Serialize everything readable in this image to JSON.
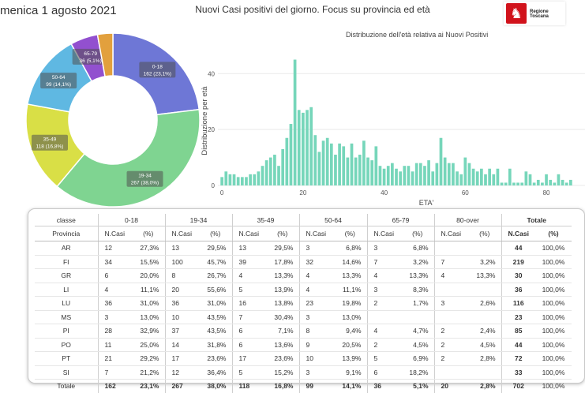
{
  "header": {
    "date": "menica 1 agosto 2021",
    "title": "Nuovi Casi positivi del giorno. Focus su provincia ed età",
    "logo_text": "Regione Toscana"
  },
  "chart_data": [
    {
      "type": "pie",
      "donut": true,
      "slices": [
        {
          "label": "0-18",
          "text": "162 (23,1%)",
          "value": 162,
          "percent": 23.1,
          "color": "#6e77d6"
        },
        {
          "label": "19-34",
          "text": "267 (38,0%)",
          "value": 267,
          "percent": 38.0,
          "color": "#7fd491"
        },
        {
          "label": "35-49",
          "text": "118 (16,8%)",
          "value": 118,
          "percent": 16.8,
          "color": "#d9df46"
        },
        {
          "label": "50-64",
          "text": "99 (14,1%)",
          "value": 99,
          "percent": 14.1,
          "color": "#5fb8e2"
        },
        {
          "label": "65-79",
          "text": "36 (5,1%)",
          "value": 36,
          "percent": 5.1,
          "color": "#9250cf"
        },
        {
          "label": "80-over",
          "text": "",
          "value": 20,
          "percent": 2.8,
          "color": "#e2a03d"
        }
      ]
    },
    {
      "type": "bar",
      "title": "Distribuzione dell'età relativa ai Nuovi Positivi",
      "xlabel": "ETA'",
      "ylabel": "Distribuzione per età",
      "xlim": [
        -1,
        87
      ],
      "ylim": [
        0,
        46
      ],
      "xticks": [
        0,
        20,
        40,
        60,
        80
      ],
      "yticks": [
        0,
        20,
        40
      ],
      "color": "#76d6ba",
      "x": [
        0,
        1,
        2,
        3,
        4,
        5,
        6,
        7,
        8,
        9,
        10,
        11,
        12,
        13,
        14,
        15,
        16,
        17,
        18,
        19,
        20,
        21,
        22,
        23,
        24,
        25,
        26,
        27,
        28,
        29,
        30,
        31,
        32,
        33,
        34,
        35,
        36,
        37,
        38,
        39,
        40,
        41,
        42,
        43,
        44,
        45,
        46,
        47,
        48,
        49,
        50,
        51,
        52,
        53,
        54,
        55,
        56,
        57,
        58,
        59,
        60,
        61,
        62,
        63,
        64,
        65,
        66,
        67,
        68,
        69,
        70,
        71,
        72,
        73,
        74,
        75,
        76,
        77,
        78,
        79,
        80,
        81,
        82,
        83,
        84,
        85,
        86
      ],
      "values": [
        3,
        5,
        4,
        4,
        3,
        3,
        3,
        4,
        4,
        5,
        7,
        9,
        10,
        11,
        7,
        13,
        17,
        22,
        45,
        27,
        26,
        27,
        28,
        18,
        12,
        16,
        17,
        15,
        11,
        15,
        14,
        10,
        15,
        10,
        11,
        16,
        10,
        9,
        14,
        7,
        6,
        7,
        8,
        6,
        5,
        7,
        7,
        5,
        8,
        8,
        7,
        9,
        5,
        8,
        17,
        10,
        8,
        8,
        5,
        4,
        10,
        8,
        6,
        5,
        6,
        4,
        6,
        4,
        6,
        1,
        1,
        6,
        1,
        1,
        1,
        5,
        4,
        1,
        2,
        1,
        4,
        2,
        1,
        4,
        2,
        1,
        2
      ]
    }
  ],
  "table": {
    "groups": [
      "0-18",
      "19-34",
      "35-49",
      "50-64",
      "65-79",
      "80-over"
    ],
    "classe_label": "classe",
    "totale_label": "Totale",
    "provincia_label": "Provincia",
    "ncasi_label": "N.Casi",
    "pct_label": "(%)",
    "rows": [
      {
        "p": "AR",
        "v": [
          [
            "12",
            "27,3%"
          ],
          [
            "13",
            "29,5%"
          ],
          [
            "13",
            "29,5%"
          ],
          [
            "3",
            "6,8%"
          ],
          [
            "3",
            "6,8%"
          ],
          [
            "",
            ""
          ]
        ],
        "t": [
          "44",
          "100,0%"
        ]
      },
      {
        "p": "FI",
        "v": [
          [
            "34",
            "15,5%"
          ],
          [
            "100",
            "45,7%"
          ],
          [
            "39",
            "17,8%"
          ],
          [
            "32",
            "14,6%"
          ],
          [
            "7",
            "3,2%"
          ],
          [
            "7",
            "3,2%"
          ]
        ],
        "t": [
          "219",
          "100,0%"
        ]
      },
      {
        "p": "GR",
        "v": [
          [
            "6",
            "20,0%"
          ],
          [
            "8",
            "26,7%"
          ],
          [
            "4",
            "13,3%"
          ],
          [
            "4",
            "13,3%"
          ],
          [
            "4",
            "13,3%"
          ],
          [
            "4",
            "13,3%"
          ]
        ],
        "t": [
          "30",
          "100,0%"
        ]
      },
      {
        "p": "LI",
        "v": [
          [
            "4",
            "11,1%"
          ],
          [
            "20",
            "55,6%"
          ],
          [
            "5",
            "13,9%"
          ],
          [
            "4",
            "11,1%"
          ],
          [
            "3",
            "8,3%"
          ],
          [
            "",
            ""
          ]
        ],
        "t": [
          "36",
          "100,0%"
        ]
      },
      {
        "p": "LU",
        "v": [
          [
            "36",
            "31,0%"
          ],
          [
            "36",
            "31,0%"
          ],
          [
            "16",
            "13,8%"
          ],
          [
            "23",
            "19,8%"
          ],
          [
            "2",
            "1,7%"
          ],
          [
            "3",
            "2,6%"
          ]
        ],
        "t": [
          "116",
          "100,0%"
        ]
      },
      {
        "p": "MS",
        "v": [
          [
            "3",
            "13,0%"
          ],
          [
            "10",
            "43,5%"
          ],
          [
            "7",
            "30,4%"
          ],
          [
            "3",
            "13,0%"
          ],
          [
            "",
            ""
          ],
          [
            "",
            ""
          ]
        ],
        "t": [
          "23",
          "100,0%"
        ]
      },
      {
        "p": "PI",
        "v": [
          [
            "28",
            "32,9%"
          ],
          [
            "37",
            "43,5%"
          ],
          [
            "6",
            "7,1%"
          ],
          [
            "8",
            "9,4%"
          ],
          [
            "4",
            "4,7%"
          ],
          [
            "2",
            "2,4%"
          ]
        ],
        "t": [
          "85",
          "100,0%"
        ]
      },
      {
        "p": "PO",
        "v": [
          [
            "11",
            "25,0%"
          ],
          [
            "14",
            "31,8%"
          ],
          [
            "6",
            "13,6%"
          ],
          [
            "9",
            "20,5%"
          ],
          [
            "2",
            "4,5%"
          ],
          [
            "2",
            "4,5%"
          ]
        ],
        "t": [
          "44",
          "100,0%"
        ]
      },
      {
        "p": "PT",
        "v": [
          [
            "21",
            "29,2%"
          ],
          [
            "17",
            "23,6%"
          ],
          [
            "17",
            "23,6%"
          ],
          [
            "10",
            "13,9%"
          ],
          [
            "5",
            "6,9%"
          ],
          [
            "2",
            "2,8%"
          ]
        ],
        "t": [
          "72",
          "100,0%"
        ]
      },
      {
        "p": "SI",
        "v": [
          [
            "7",
            "21,2%"
          ],
          [
            "12",
            "36,4%"
          ],
          [
            "5",
            "15,2%"
          ],
          [
            "3",
            "9,1%"
          ],
          [
            "6",
            "18,2%"
          ],
          [
            "",
            ""
          ]
        ],
        "t": [
          "33",
          "100,0%"
        ]
      }
    ],
    "total_row": {
      "p": "Totale",
      "v": [
        [
          "162",
          "23,1%"
        ],
        [
          "267",
          "38,0%"
        ],
        [
          "118",
          "16,8%"
        ],
        [
          "99",
          "14,1%"
        ],
        [
          "36",
          "5,1%"
        ],
        [
          "20",
          "2,8%"
        ]
      ],
      "t": [
        "702",
        "100,0%"
      ]
    }
  }
}
